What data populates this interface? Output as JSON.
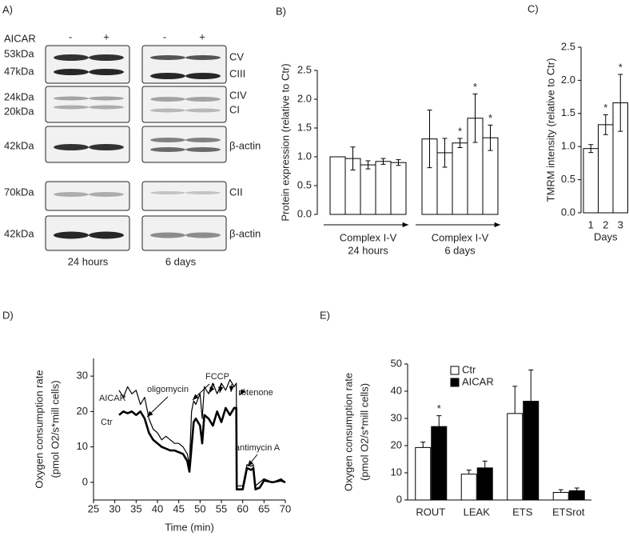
{
  "panel_a": {
    "label": "A)",
    "treatment": "AICAR",
    "lanes": [
      "-",
      "+",
      "-",
      "+"
    ],
    "markers": [
      "53kDa",
      "47kDa",
      "24kDa",
      "20kDa",
      "42kDa",
      "70kDa",
      "42kDa"
    ],
    "proteins": [
      "CV",
      "CIII",
      "CIV",
      "CI",
      "β-actin",
      "CII",
      "β-actin"
    ],
    "times": [
      "24 hours",
      "6 days"
    ]
  },
  "chart_data": [
    {
      "panel_label": "B)",
      "type": "bar",
      "ylabel": "Protein expression (relative to Ctr)",
      "ylim": [
        0,
        2.5
      ],
      "yticks": [
        {
          "value": 0,
          "label": "0.0"
        },
        {
          "value": 0.5,
          "label": "0.5"
        },
        {
          "value": 1,
          "label": "1.0"
        },
        {
          "value": 1.5,
          "label": "1.5"
        },
        {
          "value": 2,
          "label": "2.0"
        },
        {
          "value": 2.5,
          "label": "2.5"
        }
      ],
      "color": "#ffffff",
      "groups": [
        {
          "labels": [
            "Complex I-V",
            "24 hours"
          ],
          "values": [
            1.0,
            0.97,
            0.86,
            0.92,
            0.9
          ],
          "errors": [
            0,
            0.2,
            0.07,
            0.05,
            0.05
          ]
        },
        {
          "labels": [
            "Complex I-V",
            "6 days"
          ],
          "values": [
            1.31,
            1.07,
            1.24,
            1.67,
            1.33
          ],
          "errors": [
            0.5,
            0.25,
            0.08,
            0.42,
            0.22
          ],
          "annotations": [
            null,
            null,
            "*",
            "*",
            "*"
          ]
        }
      ]
    },
    {
      "panel_label": "C)",
      "type": "bar",
      "ylabel": "TMRM intensity (relative to Ctr)",
      "xlabel": "Days",
      "ylim": [
        0,
        2.5
      ],
      "yticks": [
        {
          "value": 0,
          "label": "0.0"
        },
        {
          "value": 0.5,
          "label": "0.5"
        },
        {
          "value": 1,
          "label": "1.0"
        },
        {
          "value": 1.5,
          "label": "1.5"
        },
        {
          "value": 2,
          "label": "2.0"
        },
        {
          "value": 2.5,
          "label": "2.5"
        }
      ],
      "color": "#ffffff",
      "categories": [
        "1",
        "2",
        "3"
      ],
      "values": [
        0.97,
        1.33,
        1.66
      ],
      "errors": [
        0.06,
        0.15,
        0.43
      ],
      "annotations": [
        null,
        "*",
        "*"
      ]
    },
    {
      "panel_label": "D)",
      "type": "line",
      "xlabel": "Time (min)",
      "ylabel": [
        "Oxygen consumption rate",
        "(pmol O2/s*mill cells)"
      ],
      "xlim": [
        25,
        70
      ],
      "xticks": [
        25,
        30,
        35,
        40,
        45,
        50,
        55,
        60,
        65,
        70
      ],
      "ylim": [
        -5,
        35
      ],
      "yticks": [
        0,
        10,
        20,
        30
      ],
      "series": [
        {
          "name": "AICAR",
          "color": "#000000",
          "width": 1.2,
          "x": [
            31,
            32,
            33,
            34,
            35,
            36,
            37,
            38,
            39,
            40,
            41,
            42,
            43,
            44,
            45,
            46,
            47,
            47.5,
            48,
            48.5,
            49,
            50,
            50.5,
            51,
            52,
            53,
            54,
            55,
            56,
            57,
            58,
            58.5,
            58.6,
            60,
            61,
            62,
            62.5,
            63,
            64,
            65,
            67,
            69,
            70
          ],
          "y": [
            26,
            24,
            27,
            25,
            26,
            22,
            24,
            18,
            15,
            14,
            12,
            13,
            12,
            11,
            11,
            10,
            8,
            5,
            20,
            23,
            22,
            25,
            18,
            27,
            25,
            28,
            25,
            28,
            26,
            29,
            27,
            28,
            -1,
            -1,
            5,
            4.5,
            5,
            -1,
            0,
            1,
            0,
            1,
            0
          ]
        },
        {
          "name": "Ctr",
          "color": "#000000",
          "width": 2.6,
          "x": [
            31,
            32,
            33,
            34,
            35,
            36,
            37,
            38,
            39,
            40,
            41,
            42,
            43,
            44,
            45,
            46,
            47,
            47.5,
            48,
            48.5,
            49,
            50,
            50.5,
            51,
            52,
            53,
            54,
            55,
            56,
            57,
            58,
            58.5,
            58.6,
            60,
            61,
            62,
            62.5,
            63,
            64,
            65,
            67,
            69,
            70
          ],
          "y": [
            19,
            20,
            19.5,
            20,
            19,
            20,
            18,
            14,
            12,
            11,
            10,
            9.5,
            9,
            9,
            8.5,
            8,
            6,
            3,
            10,
            17,
            18,
            16,
            11,
            19,
            18,
            16,
            20,
            17,
            21,
            19,
            21,
            21,
            -2,
            -2,
            4,
            3.5,
            4,
            -2,
            -1.5,
            0.5,
            0,
            0.5,
            0
          ]
        }
      ],
      "annotations": [
        "oligomycin",
        "FCCP",
        "rotenone",
        "antimycin A"
      ]
    },
    {
      "panel_label": "E)",
      "type": "bar",
      "ylabel": [
        "Oxygen consumption rate",
        "(pmol O2/s*mill cells)"
      ],
      "ylim": [
        0,
        50
      ],
      "yticks": [
        0,
        10,
        20,
        30,
        40,
        50
      ],
      "categories": [
        "ROUT",
        "LEAK",
        "ETS",
        "ETSrot"
      ],
      "series": [
        {
          "name": "Ctr",
          "color": "#ffffff",
          "values": [
            19.3,
            9.5,
            31.8,
            2.8
          ],
          "errors": [
            2,
            1.5,
            10,
            1
          ]
        },
        {
          "name": "AICAR",
          "color": "#000000",
          "values": [
            27,
            11.8,
            36.3,
            3.4
          ],
          "errors": [
            4,
            2.5,
            11.5,
            1
          ],
          "annotations": [
            "*",
            null,
            null,
            null
          ]
        }
      ],
      "legend": "upper left"
    }
  ]
}
